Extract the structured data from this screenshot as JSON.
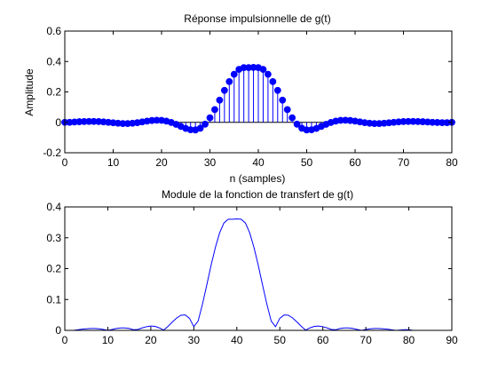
{
  "figure": {
    "background": "#ffffff"
  },
  "chart_data": [
    {
      "type": "stem",
      "title": "Réponse impulsionnelle de g(t)",
      "xlabel": "n (samples)",
      "ylabel": "Amplitude",
      "xlim": [
        0,
        80
      ],
      "ylim": [
        -0.2,
        0.6
      ],
      "xticks": [
        0,
        10,
        20,
        30,
        40,
        50,
        60,
        70,
        80
      ],
      "xtick_labels": [
        "0",
        "10",
        "20",
        "30",
        "40",
        "50",
        "60",
        "70",
        "80"
      ],
      "yticks": [
        -0.2,
        0,
        0.2,
        0.4,
        0.6
      ],
      "ytick_labels": [
        "-0.2",
        "0",
        "0.2",
        "0.4",
        "0.6"
      ],
      "grid": false,
      "color": "#0000ff",
      "series": [
        {
          "x": [
            0,
            1,
            2,
            3,
            4,
            5,
            6,
            7,
            8,
            9,
            10,
            11,
            12,
            13,
            14,
            15,
            16,
            17,
            18,
            19,
            20,
            21,
            22,
            23,
            24,
            25,
            26,
            27,
            28,
            29,
            30,
            31,
            32,
            33,
            34,
            35,
            36,
            37,
            38,
            39,
            40,
            41,
            42,
            43,
            44,
            45,
            46,
            47,
            48,
            49,
            50,
            51,
            52,
            53,
            54,
            55,
            56,
            57,
            58,
            59,
            60,
            61,
            62,
            63,
            64,
            65,
            66,
            67,
            68,
            69,
            70,
            71,
            72,
            73,
            74,
            75,
            76,
            77,
            78,
            79,
            80
          ],
          "values": [
            0,
            0,
            0.002,
            0.004,
            0.005,
            0.006,
            0.006,
            0.005,
            0.003,
            0,
            -0.003,
            -0.006,
            -0.008,
            -0.008,
            -0.006,
            -0.002,
            0.003,
            0.008,
            0.012,
            0.014,
            0.013,
            0.008,
            -0.001,
            -0.013,
            -0.027,
            -0.04,
            -0.049,
            -0.05,
            -0.039,
            -0.012,
            0.03,
            0.084,
            0.146,
            0.21,
            0.268,
            0.316,
            0.348,
            0.36,
            0.36,
            0.361,
            0.36,
            0.348,
            0.316,
            0.268,
            0.21,
            0.146,
            0.084,
            0.03,
            -0.012,
            -0.039,
            -0.05,
            -0.049,
            -0.04,
            -0.027,
            -0.013,
            -0.001,
            0.008,
            0.013,
            0.014,
            0.012,
            0.008,
            0.003,
            -0.002,
            -0.006,
            -0.008,
            -0.008,
            -0.006,
            -0.003,
            0,
            0.003,
            0.005,
            0.006,
            0.006,
            0.005,
            0.004,
            0.002,
            0,
            -0.001,
            -0.002,
            -0.002,
            0
          ]
        }
      ]
    },
    {
      "type": "line",
      "title": "Module de la fonction de transfert de g(t)",
      "xlabel": "",
      "ylabel": "",
      "xlim": [
        0,
        90
      ],
      "ylim": [
        0,
        0.4
      ],
      "xticks": [
        0,
        10,
        20,
        30,
        40,
        50,
        60,
        70,
        80,
        90
      ],
      "xtick_labels": [
        "0",
        "10",
        "20",
        "30",
        "40",
        "50",
        "60",
        "70",
        "80",
        "90"
      ],
      "yticks": [
        0,
        0.1,
        0.2,
        0.3,
        0.4
      ],
      "ytick_labels": [
        "0",
        "0.1",
        "0.2",
        "0.3",
        "0.4"
      ],
      "grid": false,
      "color": "#0000ff",
      "series": [
        {
          "x": [
            1,
            2,
            3,
            4,
            5,
            6,
            7,
            8,
            9,
            10,
            11,
            12,
            13,
            14,
            15,
            16,
            17,
            18,
            19,
            20,
            21,
            22,
            23,
            24,
            25,
            26,
            27,
            28,
            29,
            30,
            31,
            32,
            33,
            34,
            35,
            36,
            37,
            38,
            39,
            40,
            41,
            42,
            43,
            44,
            45,
            46,
            47,
            48,
            49,
            50,
            51,
            52,
            53,
            54,
            55,
            56,
            57,
            58,
            59,
            60,
            61,
            62,
            63,
            64,
            65,
            66,
            67,
            68,
            69,
            70,
            71,
            72,
            73,
            74,
            75,
            76,
            77,
            78,
            79,
            80,
            81
          ],
          "values": [
            0,
            0,
            0.002,
            0.004,
            0.005,
            0.006,
            0.006,
            0.005,
            0.003,
            0,
            0.003,
            0.006,
            0.008,
            0.008,
            0.006,
            0.002,
            0.003,
            0.008,
            0.012,
            0.014,
            0.013,
            0.008,
            0.001,
            0.013,
            0.027,
            0.04,
            0.049,
            0.05,
            0.039,
            0.012,
            0.03,
            0.084,
            0.146,
            0.21,
            0.268,
            0.316,
            0.348,
            0.36,
            0.36,
            0.361,
            0.36,
            0.348,
            0.316,
            0.268,
            0.21,
            0.146,
            0.084,
            0.03,
            0.012,
            0.039,
            0.05,
            0.049,
            0.04,
            0.027,
            0.013,
            0.001,
            0.008,
            0.013,
            0.014,
            0.012,
            0.008,
            0.003,
            0.002,
            0.006,
            0.008,
            0.008,
            0.006,
            0.003,
            0,
            0.003,
            0.005,
            0.006,
            0.006,
            0.005,
            0.004,
            0.002,
            0,
            0.001,
            0.002,
            0.002,
            0
          ]
        }
      ]
    }
  ]
}
